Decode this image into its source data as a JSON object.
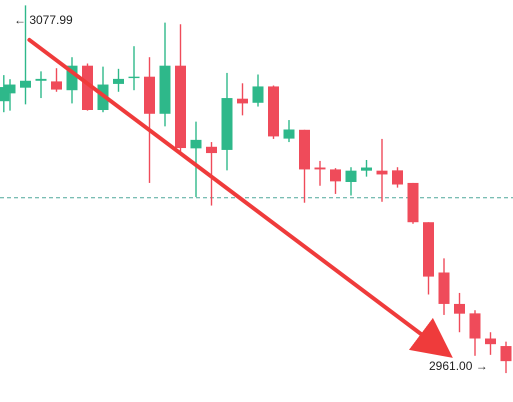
{
  "colors": {
    "up": "#2eb88a",
    "down": "#ef4b5a",
    "arrow": "#ef3b3b",
    "dashed": "#4fa79a",
    "text": "#1f1f1f",
    "background": "#ffffff"
  },
  "labels": {
    "high_text": "← 3077.99",
    "low_text": "2961.00 →"
  },
  "chart_data": {
    "type": "candlestick",
    "title": "",
    "xlabel": "",
    "ylabel": "",
    "grid": false,
    "ylim": [
      2951.8,
      3079.7
    ],
    "reference_line": 3016.8,
    "annotations": [
      {
        "label": "← 3077.99",
        "value": 3077.99,
        "type": "high"
      },
      {
        "label": "2961.00 →",
        "value": 2961.0,
        "type": "low"
      }
    ],
    "trend_arrow": {
      "from": {
        "index": 1.25,
        "value": 3067.0
      },
      "to": {
        "index": 28.2,
        "value": 2967.2
      }
    },
    "candles": [
      {
        "index": -0.4,
        "open": 3047.5,
        "high": 3055.8,
        "low": 3044.0,
        "close": 3052.0
      },
      {
        "index": 0.0,
        "open": 3050.0,
        "high": 3054.5,
        "low": 3044.5,
        "close": 3052.8
      },
      {
        "index": 1.0,
        "open": 3051.8,
        "high": 3077.99,
        "low": 3046.5,
        "close": 3054.0
      },
      {
        "index": 2.0,
        "open": 3054.0,
        "high": 3057.0,
        "low": 3048.5,
        "close": 3054.6
      },
      {
        "index": 3.0,
        "open": 3053.8,
        "high": 3058.0,
        "low": 3050.5,
        "close": 3051.2
      },
      {
        "index": 4.0,
        "open": 3051.0,
        "high": 3061.5,
        "low": 3046.8,
        "close": 3058.8
      },
      {
        "index": 5.0,
        "open": 3058.8,
        "high": 3059.5,
        "low": 3044.5,
        "close": 3044.7
      },
      {
        "index": 6.0,
        "open": 3044.7,
        "high": 3058.5,
        "low": 3044.0,
        "close": 3052.8
      },
      {
        "index": 7.0,
        "open": 3053.0,
        "high": 3057.8,
        "low": 3050.5,
        "close": 3054.6
      },
      {
        "index": 8.0,
        "open": 3055.2,
        "high": 3065.0,
        "low": 3051.0,
        "close": 3055.3
      },
      {
        "index": 9.0,
        "open": 3055.3,
        "high": 3061.5,
        "low": 3021.5,
        "close": 3043.5
      },
      {
        "index": 10.0,
        "open": 3043.5,
        "high": 3072.5,
        "low": 3039.5,
        "close": 3058.8
      },
      {
        "index": 11.0,
        "open": 3058.8,
        "high": 3072.0,
        "low": 3030.8,
        "close": 3032.6
      },
      {
        "index": 12.0,
        "open": 3032.5,
        "high": 3041.0,
        "low": 3017.0,
        "close": 3035.2
      },
      {
        "index": 13.0,
        "open": 3033.0,
        "high": 3034.5,
        "low": 3014.3,
        "close": 3031.0
      },
      {
        "index": 14.0,
        "open": 3032.0,
        "high": 3056.5,
        "low": 3025.5,
        "close": 3048.5
      },
      {
        "index": 15.0,
        "open": 3048.3,
        "high": 3053.2,
        "low": 3043.0,
        "close": 3046.8
      },
      {
        "index": 16.0,
        "open": 3047.0,
        "high": 3056.0,
        "low": 3045.8,
        "close": 3052.2
      },
      {
        "index": 17.0,
        "open": 3052.2,
        "high": 3052.5,
        "low": 3035.5,
        "close": 3036.3
      },
      {
        "index": 18.0,
        "open": 3035.6,
        "high": 3041.5,
        "low": 3034.5,
        "close": 3038.5
      },
      {
        "index": 19.0,
        "open": 3038.4,
        "high": 3038.4,
        "low": 3015.2,
        "close": 3025.8
      },
      {
        "index": 20.0,
        "open": 3026.4,
        "high": 3028.5,
        "low": 3020.6,
        "close": 3025.8
      },
      {
        "index": 21.0,
        "open": 3025.8,
        "high": 3026.2,
        "low": 3018.0,
        "close": 3022.0
      },
      {
        "index": 22.0,
        "open": 3021.8,
        "high": 3026.5,
        "low": 3017.5,
        "close": 3025.4
      },
      {
        "index": 23.0,
        "open": 3025.4,
        "high": 3028.8,
        "low": 3023.5,
        "close": 3026.4
      },
      {
        "index": 24.0,
        "open": 3025.4,
        "high": 3035.5,
        "low": 3015.5,
        "close": 3024.2
      },
      {
        "index": 25.0,
        "open": 3025.5,
        "high": 3026.5,
        "low": 3020.0,
        "close": 3021.0
      },
      {
        "index": 26.0,
        "open": 3021.5,
        "high": 3021.5,
        "low": 3008.5,
        "close": 3009.0
      },
      {
        "index": 27.0,
        "open": 3009.0,
        "high": 3009.0,
        "low": 2986.0,
        "close": 2991.7
      },
      {
        "index": 28.0,
        "open": 2993.0,
        "high": 2997.5,
        "low": 2979.5,
        "close": 2983.0
      },
      {
        "index": 29.0,
        "open": 2983.0,
        "high": 2986.5,
        "low": 2974.0,
        "close": 2979.9
      },
      {
        "index": 30.0,
        "open": 2980.0,
        "high": 2981.0,
        "low": 2966.5,
        "close": 2972.0
      },
      {
        "index": 31.0,
        "open": 2972.0,
        "high": 2974.0,
        "low": 2966.8,
        "close": 2970.2
      },
      {
        "index": 32.0,
        "open": 2969.6,
        "high": 2971.0,
        "low": 2961.0,
        "close": 2964.8
      },
      {
        "index": 33.0,
        "open": 2964.4,
        "high": 2972.5,
        "low": 2963.4,
        "close": 2970.3
      }
    ]
  }
}
